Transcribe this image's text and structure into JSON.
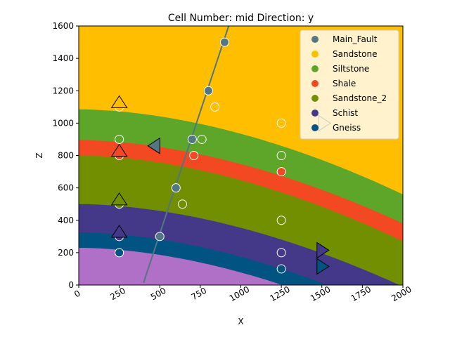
{
  "chart_data": {
    "type": "geological-section",
    "title": "Cell Number: mid Direction: y",
    "xlabel": "X",
    "ylabel": "Z",
    "xlim": [
      0,
      2000
    ],
    "ylim": [
      0,
      1600
    ],
    "xticks": [
      0,
      250,
      500,
      750,
      1000,
      1250,
      1500,
      1750,
      2000
    ],
    "yticks": [
      0,
      200,
      400,
      600,
      800,
      1000,
      1200,
      1400,
      1600
    ],
    "legend_position": "upper-right",
    "formations": [
      {
        "name": "Main_Fault",
        "color": "#527682"
      },
      {
        "name": "Sandstone",
        "color": "#ffbe00"
      },
      {
        "name": "Siltstone",
        "color": "#5da629"
      },
      {
        "name": "Shale",
        "color": "#f34922"
      },
      {
        "name": "Sandstone_2",
        "color": "#728f02"
      },
      {
        "name": "Schist",
        "color": "#443988"
      },
      {
        "name": "Gneiss",
        "color": "#015482"
      }
    ],
    "basement_color": "#b070c8",
    "layer_tops": [
      {
        "name": "Siltstone",
        "color": "#5da629",
        "left_z": 1085,
        "right_z": 560
      },
      {
        "name": "Shale",
        "color": "#f34922",
        "left_z": 895,
        "right_z": 380
      },
      {
        "name": "Sandstone_2",
        "color": "#728f02",
        "left_z": 800,
        "right_z": 270
      },
      {
        "name": "Schist",
        "color": "#443988",
        "left_z": 500,
        "right_z": -10
      },
      {
        "name": "Gneiss",
        "color": "#015482",
        "left_z": 325,
        "right_z": -200
      },
      {
        "name": "Basement",
        "color": "#b070c8",
        "left_z": 230,
        "right_z": -300
      }
    ],
    "fault_line": [
      [
        400,
        15
      ],
      [
        925,
        1600
      ]
    ],
    "surface_points": [
      {
        "x": 250,
        "z": 1100,
        "color": "#ffbe00"
      },
      {
        "x": 250,
        "z": 900,
        "color": "#5da629"
      },
      {
        "x": 250,
        "z": 800,
        "color": "#f34922"
      },
      {
        "x": 250,
        "z": 500,
        "color": "#728f02"
      },
      {
        "x": 250,
        "z": 300,
        "color": "#443988"
      },
      {
        "x": 250,
        "z": 200,
        "color": "#015482"
      },
      {
        "x": 500,
        "z": 300,
        "color": "#527682"
      },
      {
        "x": 600,
        "z": 600,
        "color": "#527682"
      },
      {
        "x": 700,
        "z": 900,
        "color": "#527682"
      },
      {
        "x": 800,
        "z": 1200,
        "color": "#527682"
      },
      {
        "x": 900,
        "z": 1500,
        "color": "#527682"
      },
      {
        "x": 710,
        "z": 800,
        "color": "#f34922"
      },
      {
        "x": 760,
        "z": 900,
        "color": "#5da629"
      },
      {
        "x": 640,
        "z": 500,
        "color": "#728f02"
      },
      {
        "x": 840,
        "z": 1100,
        "color": "#ffbe00"
      },
      {
        "x": 1250,
        "z": 1000,
        "color": "#ffbe00"
      },
      {
        "x": 1250,
        "z": 800,
        "color": "#5da629"
      },
      {
        "x": 1250,
        "z": 700,
        "color": "#f34922"
      },
      {
        "x": 1250,
        "z": 400,
        "color": "#728f02"
      },
      {
        "x": 1250,
        "z": 200,
        "color": "#443988"
      },
      {
        "x": 1250,
        "z": 100,
        "color": "#015482"
      }
    ],
    "orientations": [
      {
        "x": 250,
        "z": 1125,
        "direction": "up",
        "color": "#ffbe00"
      },
      {
        "x": 250,
        "z": 825,
        "direction": "up",
        "color": "#f34922"
      },
      {
        "x": 250,
        "z": 525,
        "direction": "up",
        "color": "#728f02"
      },
      {
        "x": 250,
        "z": 325,
        "direction": "up",
        "color": "#443988"
      },
      {
        "x": 470,
        "z": 860,
        "direction": "left",
        "color": "#527682"
      },
      {
        "x": 1510,
        "z": 1000,
        "direction": "right",
        "color": "#ffbe00"
      },
      {
        "x": 1500,
        "z": 215,
        "direction": "right",
        "color": "#443988"
      },
      {
        "x": 1500,
        "z": 115,
        "direction": "right",
        "color": "#015482"
      }
    ]
  }
}
